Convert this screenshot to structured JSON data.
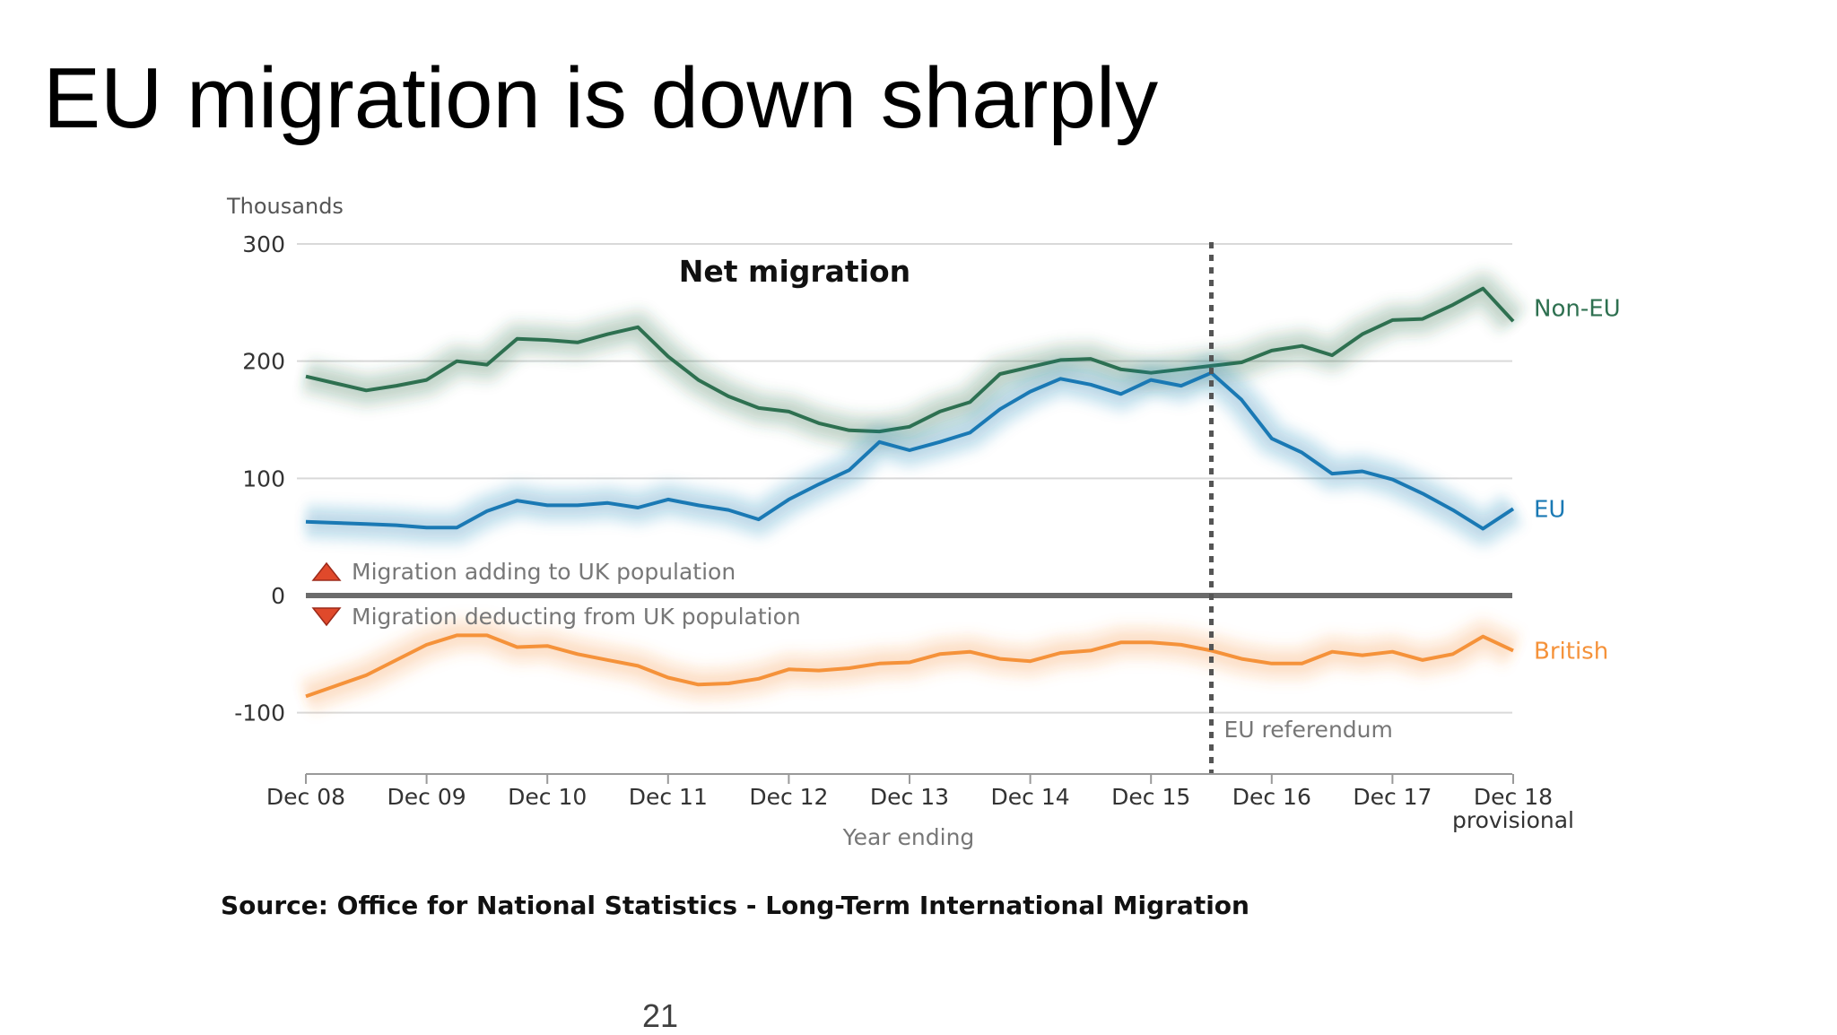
{
  "slide": {
    "title": "EU migration is down sharply",
    "source": "Source: Office for National Statistics - Long-Term International Migration",
    "page_number": "21"
  },
  "chart_data": {
    "type": "line",
    "title": "Net migration",
    "ylabel": "Thousands",
    "xlabel": "Year ending",
    "ylim": [
      -150,
      300
    ],
    "yticks": [
      300,
      200,
      100,
      0,
      -100
    ],
    "grid": true,
    "categories": [
      "Dec 08",
      "Dec 09",
      "Dec 10",
      "Dec 11",
      "Dec 12",
      "Dec 13",
      "Dec 14",
      "Dec 15",
      "Dec 16",
      "Dec 17",
      "Dec 18"
    ],
    "last_category_note": "provisional",
    "x": [
      0,
      0.25,
      0.5,
      0.75,
      1,
      1.25,
      1.5,
      1.75,
      2,
      2.25,
      2.5,
      2.75,
      3,
      3.25,
      3.5,
      3.75,
      4,
      4.25,
      4.5,
      4.75,
      5,
      5.25,
      5.5,
      5.75,
      6,
      6.25,
      6.5,
      6.75,
      7,
      7.25,
      7.5,
      7.75,
      8,
      8.25,
      8.5,
      8.75,
      9,
      9.25,
      9.5,
      9.75,
      10
    ],
    "series": [
      {
        "name": "Non-EU",
        "color": "#2e7050",
        "values": [
          187,
          181,
          175,
          179,
          184,
          200,
          197,
          219,
          218,
          216,
          223,
          229,
          204,
          184,
          170,
          160,
          157,
          147,
          141,
          140,
          144,
          157,
          165,
          189,
          195,
          201,
          202,
          193,
          190,
          193,
          196,
          199,
          209,
          213,
          205,
          223,
          235,
          236,
          248,
          262,
          234
        ]
      },
      {
        "name": "EU",
        "color": "#1a79b4",
        "values": [
          63,
          62,
          61,
          60,
          58,
          58,
          72,
          81,
          77,
          77,
          79,
          75,
          82,
          77,
          73,
          65,
          82,
          95,
          107,
          131,
          124,
          131,
          139,
          159,
          174,
          185,
          180,
          172,
          184,
          179,
          190,
          167,
          134,
          122,
          104,
          106,
          99,
          87,
          73,
          57,
          74
        ]
      },
      {
        "name": "British",
        "color": "#f5923a",
        "values": [
          -86,
          -77,
          -68,
          -55,
          -42,
          -34,
          -34,
          -44,
          -43,
          -50,
          -55,
          -60,
          -70,
          -76,
          -75,
          -71,
          -63,
          -64,
          -62,
          -58,
          -57,
          -50,
          -48,
          -54,
          -56,
          -49,
          -47,
          -40,
          -40,
          -42,
          -47,
          -54,
          -58,
          -58,
          -48,
          -51,
          -48,
          -55,
          -50,
          -35,
          -47
        ]
      }
    ],
    "annotations": {
      "adding_label": "Migration adding to UK population",
      "deducting_label": "Migration deducting from UK population",
      "referendum_label": "EU referendum",
      "referendum_x": 7.5
    }
  }
}
